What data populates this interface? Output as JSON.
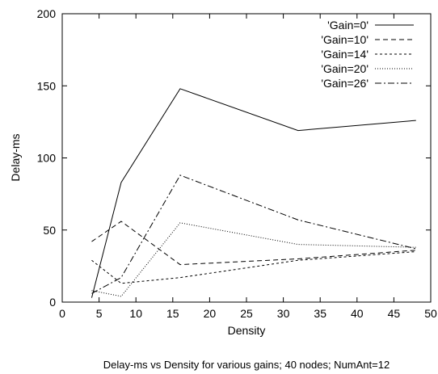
{
  "chart_data": {
    "type": "line",
    "title": "",
    "caption": "Delay-ms vs Density for various gains; 40 nodes; NumAnt=12",
    "xlabel": "Density",
    "ylabel": "Delay-ms",
    "xlim": [
      0,
      50
    ],
    "ylim": [
      0,
      200
    ],
    "xticks": [
      0,
      5,
      10,
      15,
      20,
      25,
      30,
      35,
      40,
      45,
      50
    ],
    "yticks": [
      0,
      50,
      100,
      150,
      200
    ],
    "grid": false,
    "legend_position": "top-right",
    "series": [
      {
        "name": "'Gain=0'",
        "dash": "solid",
        "x": [
          4,
          8,
          16,
          32,
          48
        ],
        "y": [
          3,
          83,
          148,
          119,
          126
        ]
      },
      {
        "name": "'Gain=10'",
        "dash": "dashed",
        "x": [
          4,
          8,
          16,
          32,
          48
        ],
        "y": [
          42,
          56,
          26,
          30,
          36
        ]
      },
      {
        "name": "'Gain=14'",
        "dash": "short-dashed",
        "x": [
          4,
          8,
          16,
          32,
          48
        ],
        "y": [
          29,
          13,
          17,
          29,
          35
        ]
      },
      {
        "name": "'Gain=20'",
        "dash": "dotted",
        "x": [
          4,
          8,
          16,
          32,
          48
        ],
        "y": [
          8,
          4,
          55,
          40,
          38
        ]
      },
      {
        "name": "'Gain=26'",
        "dash": "dash-dot",
        "x": [
          4,
          8,
          16,
          32,
          48
        ],
        "y": [
          6,
          17,
          88,
          57,
          37
        ]
      }
    ]
  }
}
